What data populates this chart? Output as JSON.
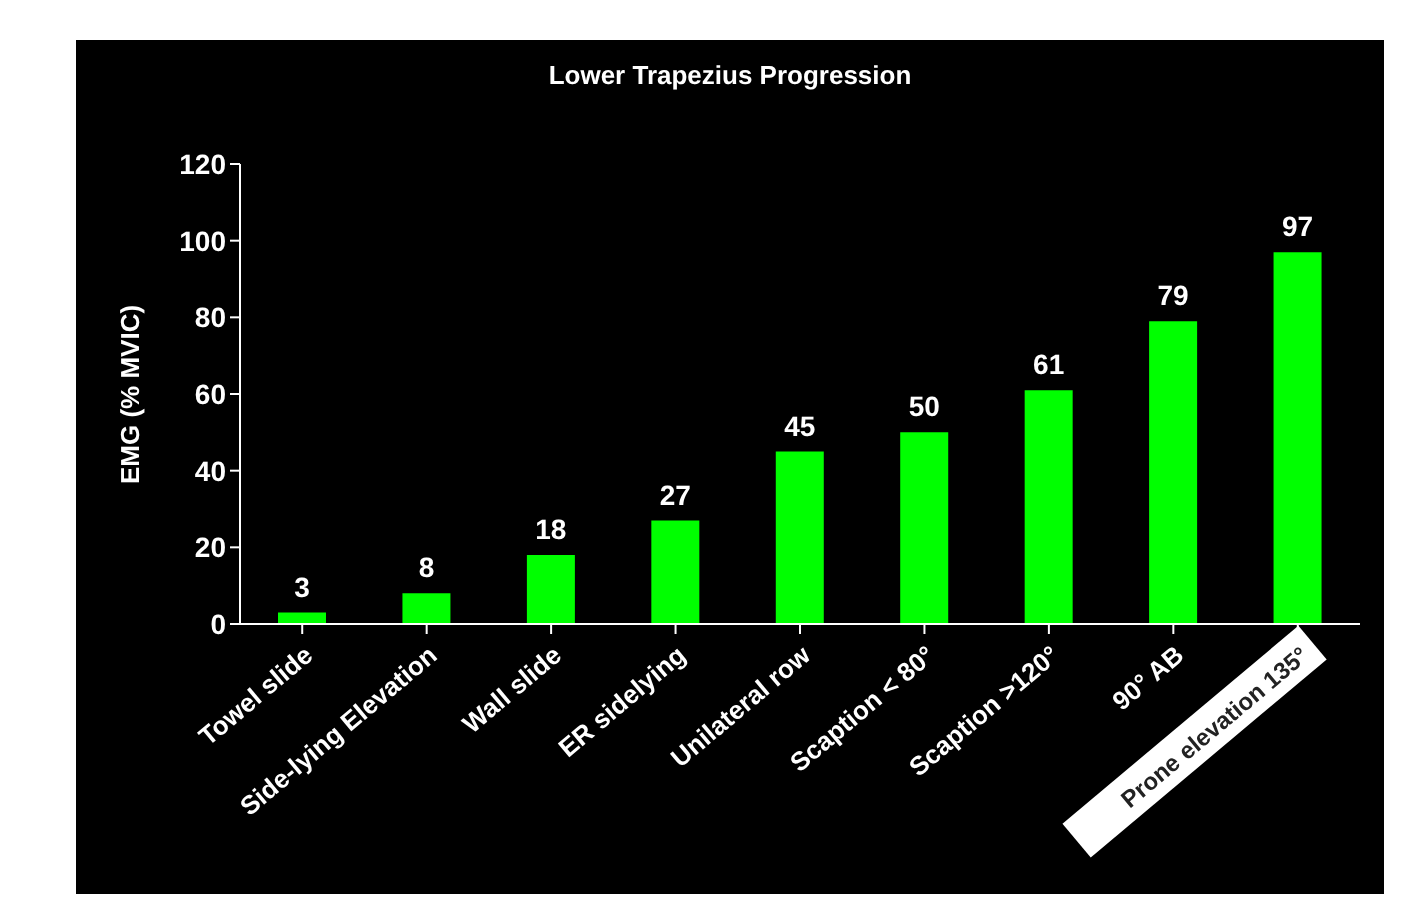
{
  "chart_data": {
    "type": "bar",
    "title": "Lower Trapezius Progression",
    "ylabel": "EMG (% MVIC)",
    "categories": [
      "Towel slide",
      "Side-lying Elevation",
      "Wall slide",
      "ER sidelying",
      "Unilateral row",
      "Scaption < 80°",
      "Scaption >120°",
      "90° AB",
      "Prone elevation 135°"
    ],
    "values": [
      3,
      8,
      18,
      27,
      45,
      50,
      61,
      79,
      97
    ],
    "color": "#00ff00",
    "ylim": [
      0,
      120
    ],
    "yticks": [
      0,
      20,
      40,
      60,
      80,
      100,
      120
    ],
    "grid": false,
    "legend": false,
    "data_labels": true
  }
}
